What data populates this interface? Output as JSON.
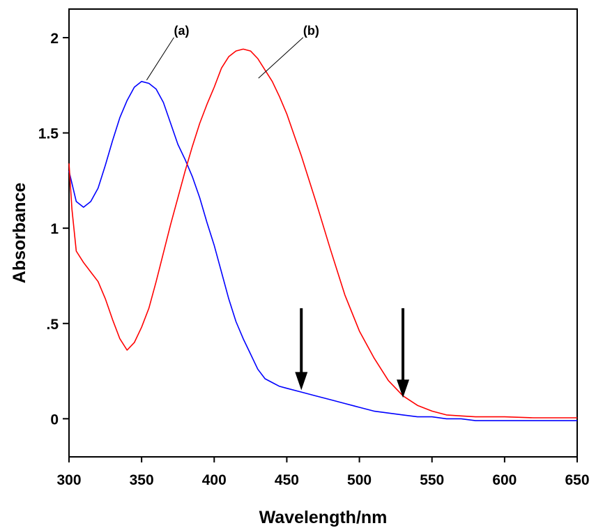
{
  "chart_data": {
    "type": "line",
    "xlabel": "Wavelength/nm",
    "ylabel": "Absorbance",
    "xlim": [
      300,
      650
    ],
    "ylim": [
      -0.2,
      2.15
    ],
    "x_ticks": [
      300,
      350,
      400,
      450,
      500,
      550,
      600,
      650
    ],
    "x_tick_labels": [
      "300",
      "350",
      "400",
      "450",
      "500",
      "550",
      "600",
      "650"
    ],
    "y_ticks": [
      0,
      0.5,
      1,
      1.5,
      2
    ],
    "y_tick_labels": [
      "0",
      ".5",
      "1",
      "1.5",
      "2"
    ],
    "grid": false,
    "series": [
      {
        "name": "(a)",
        "color": "#0000ff",
        "x": [
          300,
          305,
          310,
          315,
          320,
          325,
          330,
          335,
          340,
          345,
          350,
          355,
          360,
          365,
          370,
          375,
          380,
          385,
          390,
          395,
          400,
          405,
          410,
          415,
          420,
          425,
          430,
          435,
          440,
          445,
          450,
          460,
          470,
          480,
          490,
          500,
          510,
          520,
          530,
          540,
          550,
          560,
          570,
          580,
          590,
          600,
          610,
          620,
          630,
          640,
          650
        ],
        "y": [
          1.3,
          1.14,
          1.11,
          1.14,
          1.21,
          1.33,
          1.46,
          1.58,
          1.67,
          1.74,
          1.77,
          1.76,
          1.73,
          1.66,
          1.55,
          1.44,
          1.36,
          1.27,
          1.16,
          1.03,
          0.91,
          0.77,
          0.63,
          0.51,
          0.42,
          0.34,
          0.26,
          0.21,
          0.19,
          0.17,
          0.16,
          0.14,
          0.12,
          0.1,
          0.08,
          0.06,
          0.04,
          0.03,
          0.02,
          0.01,
          0.01,
          0.0,
          0.0,
          -0.01,
          -0.01,
          -0.01,
          -0.01,
          -0.01,
          -0.01,
          -0.01,
          -0.01
        ]
      },
      {
        "name": "(b)",
        "color": "#ff0000",
        "x": [
          300,
          302,
          305,
          310,
          315,
          320,
          325,
          330,
          335,
          340,
          345,
          350,
          355,
          360,
          365,
          370,
          375,
          380,
          385,
          390,
          395,
          400,
          405,
          410,
          415,
          420,
          425,
          430,
          435,
          440,
          445,
          450,
          455,
          460,
          470,
          480,
          490,
          500,
          510,
          520,
          530,
          540,
          550,
          560,
          570,
          580,
          600,
          620,
          650
        ],
        "y": [
          1.34,
          1.1,
          0.88,
          0.82,
          0.77,
          0.72,
          0.63,
          0.52,
          0.42,
          0.36,
          0.4,
          0.48,
          0.58,
          0.72,
          0.87,
          1.02,
          1.16,
          1.3,
          1.43,
          1.55,
          1.65,
          1.74,
          1.84,
          1.9,
          1.93,
          1.94,
          1.93,
          1.89,
          1.83,
          1.77,
          1.69,
          1.6,
          1.49,
          1.38,
          1.14,
          0.89,
          0.65,
          0.46,
          0.32,
          0.2,
          0.12,
          0.07,
          0.04,
          0.02,
          0.015,
          0.01,
          0.01,
          0.005,
          0.005
        ]
      }
    ],
    "annotations": [
      {
        "text": "(a)",
        "points_to": [
          353,
          1.77
        ],
        "label_at": [
          378,
          2.03
        ]
      },
      {
        "text": "(b)",
        "points_to": [
          430,
          1.78
        ],
        "label_at": [
          467,
          2.03
        ]
      }
    ],
    "arrows": [
      {
        "x": 460,
        "y_start": 0.58,
        "y_end": 0.15
      },
      {
        "x": 530,
        "y_start": 0.58,
        "y_end": 0.11
      }
    ]
  }
}
